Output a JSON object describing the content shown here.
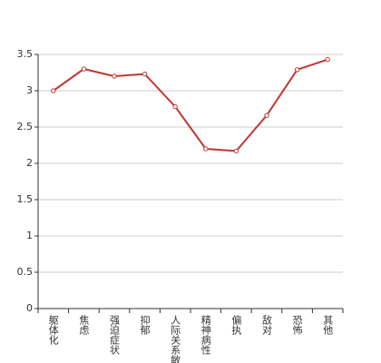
{
  "chart_data": {
    "type": "line",
    "categories": [
      "躯体化",
      "焦虑",
      "强迫症状",
      "抑郁",
      "人际关系敏感",
      "精神病性",
      "偏执",
      "敌对",
      "恐怖",
      "其他"
    ],
    "series": [
      {
        "color": "#c23531",
        "values": [
          3.0,
          3.3,
          3.2,
          3.23,
          2.78,
          2.2,
          2.17,
          2.66,
          3.29,
          3.43
        ]
      }
    ],
    "ylim": [
      0,
      3.5
    ],
    "yticks": [
      0,
      0.5,
      1,
      1.5,
      2,
      2.5,
      3,
      3.5
    ],
    "grid": true
  }
}
